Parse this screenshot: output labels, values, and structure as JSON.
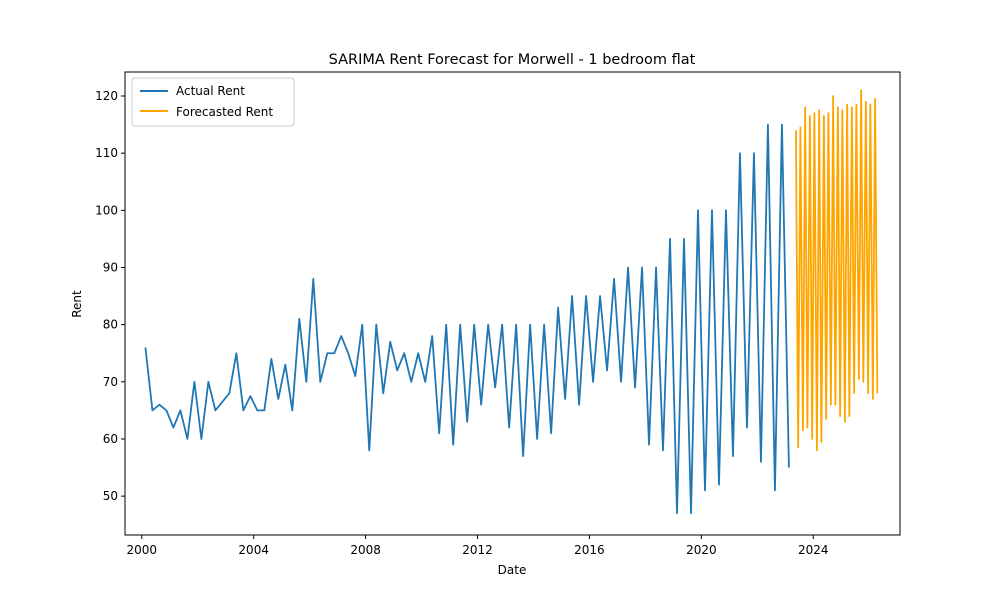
{
  "chart_data": {
    "type": "line",
    "title": "SARIMA Rent Forecast for Morwell - 1 bedroom flat",
    "xlabel": "Date",
    "ylabel": "Rent",
    "xlim": [
      1999.4,
      2027.1
    ],
    "ylim": [
      43.2,
      124.2
    ],
    "x_ticks": [
      2000,
      2004,
      2008,
      2012,
      2016,
      2020,
      2024
    ],
    "x_tick_labels": [
      "2000",
      "2004",
      "2008",
      "2012",
      "2016",
      "2020",
      "2024"
    ],
    "y_ticks": [
      50,
      60,
      70,
      80,
      90,
      100,
      110,
      120
    ],
    "y_tick_labels": [
      "50",
      "60",
      "70",
      "80",
      "90",
      "100",
      "110",
      "120"
    ],
    "grid": false,
    "legend": {
      "position": "top-left"
    },
    "series": [
      {
        "name": "Actual Rent",
        "color": "#1f77b4",
        "points": [
          [
            2000.13,
            76
          ],
          [
            2000.38,
            65
          ],
          [
            2000.63,
            66
          ],
          [
            2000.88,
            65
          ],
          [
            2001.13,
            62
          ],
          [
            2001.38,
            65
          ],
          [
            2001.63,
            60
          ],
          [
            2001.88,
            70
          ],
          [
            2002.13,
            60
          ],
          [
            2002.38,
            70
          ],
          [
            2002.63,
            65
          ],
          [
            2002.88,
            66.5
          ],
          [
            2003.13,
            68
          ],
          [
            2003.38,
            75
          ],
          [
            2003.63,
            65
          ],
          [
            2003.88,
            67.5
          ],
          [
            2004.13,
            65
          ],
          [
            2004.38,
            65
          ],
          [
            2004.63,
            74
          ],
          [
            2004.88,
            67
          ],
          [
            2005.13,
            73
          ],
          [
            2005.38,
            65
          ],
          [
            2005.63,
            81
          ],
          [
            2005.88,
            70
          ],
          [
            2006.13,
            88
          ],
          [
            2006.38,
            70
          ],
          [
            2006.63,
            75
          ],
          [
            2006.88,
            75
          ],
          [
            2007.13,
            78
          ],
          [
            2007.38,
            75
          ],
          [
            2007.63,
            71
          ],
          [
            2007.88,
            80
          ],
          [
            2008.13,
            58
          ],
          [
            2008.38,
            80
          ],
          [
            2008.63,
            68
          ],
          [
            2008.88,
            77
          ],
          [
            2009.13,
            72
          ],
          [
            2009.38,
            75
          ],
          [
            2009.63,
            70
          ],
          [
            2009.88,
            75
          ],
          [
            2010.13,
            70
          ],
          [
            2010.38,
            78
          ],
          [
            2010.63,
            61
          ],
          [
            2010.88,
            80
          ],
          [
            2011.13,
            59
          ],
          [
            2011.38,
            80
          ],
          [
            2011.63,
            63
          ],
          [
            2011.88,
            80
          ],
          [
            2012.13,
            66
          ],
          [
            2012.38,
            80
          ],
          [
            2012.63,
            69
          ],
          [
            2012.88,
            80
          ],
          [
            2013.13,
            62
          ],
          [
            2013.38,
            80
          ],
          [
            2013.63,
            57
          ],
          [
            2013.88,
            80
          ],
          [
            2014.13,
            60
          ],
          [
            2014.38,
            80
          ],
          [
            2014.63,
            61
          ],
          [
            2014.88,
            83
          ],
          [
            2015.13,
            67
          ],
          [
            2015.38,
            85
          ],
          [
            2015.63,
            66
          ],
          [
            2015.88,
            85
          ],
          [
            2016.13,
            70
          ],
          [
            2016.38,
            85
          ],
          [
            2016.63,
            72
          ],
          [
            2016.88,
            88
          ],
          [
            2017.13,
            70
          ],
          [
            2017.38,
            90
          ],
          [
            2017.63,
            69
          ],
          [
            2017.88,
            90
          ],
          [
            2018.13,
            59
          ],
          [
            2018.38,
            90
          ],
          [
            2018.63,
            58
          ],
          [
            2018.88,
            95
          ],
          [
            2019.13,
            47
          ],
          [
            2019.38,
            95
          ],
          [
            2019.63,
            47
          ],
          [
            2019.88,
            100
          ],
          [
            2020.13,
            51
          ],
          [
            2020.38,
            100
          ],
          [
            2020.63,
            52
          ],
          [
            2020.88,
            100
          ],
          [
            2021.13,
            57
          ],
          [
            2021.38,
            110
          ],
          [
            2021.63,
            62
          ],
          [
            2021.88,
            110
          ],
          [
            2022.13,
            56
          ],
          [
            2022.38,
            115
          ],
          [
            2022.63,
            51
          ],
          [
            2022.88,
            115
          ],
          [
            2023.13,
            55
          ]
        ]
      },
      {
        "name": "Forecasted Rent",
        "color": "#ffa500",
        "points": [
          [
            2023.38,
            114
          ],
          [
            2023.46,
            58.5
          ],
          [
            2023.54,
            114.5
          ],
          [
            2023.63,
            61.5
          ],
          [
            2023.71,
            118
          ],
          [
            2023.79,
            62
          ],
          [
            2023.88,
            116.5
          ],
          [
            2023.96,
            60
          ],
          [
            2024.04,
            117
          ],
          [
            2024.13,
            58
          ],
          [
            2024.21,
            117.5
          ],
          [
            2024.29,
            59.5
          ],
          [
            2024.38,
            116.5
          ],
          [
            2024.46,
            63.5
          ],
          [
            2024.54,
            117
          ],
          [
            2024.63,
            66
          ],
          [
            2024.71,
            120
          ],
          [
            2024.79,
            66
          ],
          [
            2024.88,
            118
          ],
          [
            2024.96,
            64
          ],
          [
            2025.04,
            117.5
          ],
          [
            2025.13,
            63
          ],
          [
            2025.21,
            118.5
          ],
          [
            2025.29,
            64
          ],
          [
            2025.38,
            118
          ],
          [
            2025.46,
            68
          ],
          [
            2025.54,
            118.5
          ],
          [
            2025.63,
            70.5
          ],
          [
            2025.71,
            121
          ],
          [
            2025.79,
            70
          ],
          [
            2025.88,
            119
          ],
          [
            2025.96,
            68
          ],
          [
            2026.04,
            118.5
          ],
          [
            2026.13,
            67
          ],
          [
            2026.21,
            119.5
          ],
          [
            2026.29,
            68
          ]
        ]
      }
    ]
  }
}
